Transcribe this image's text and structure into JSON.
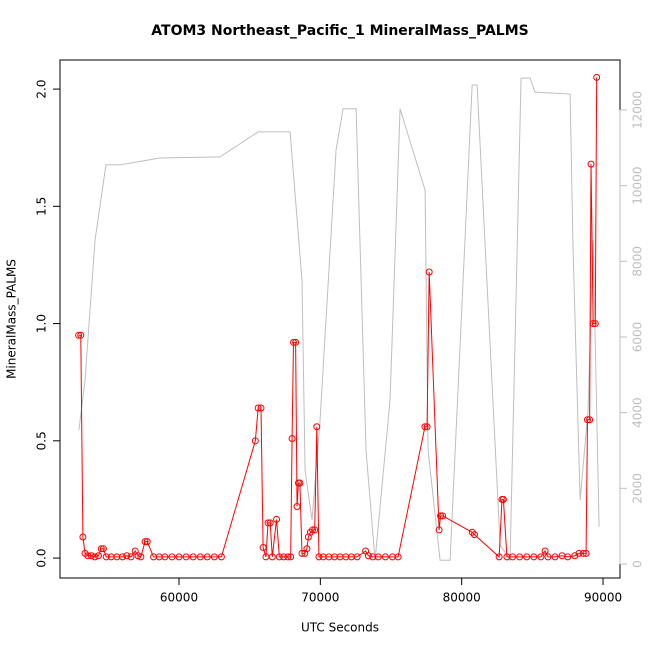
{
  "chart_data": {
    "type": "line",
    "title": "ATOM3 Northeast_Pacific_1 MineralMass_PALMS",
    "xlabel": "UTC Seconds",
    "ylabel": "MineralMass_PALMS",
    "xlim": [
      51580,
      91200
    ],
    "ylim": [
      -0.085,
      2.124
    ],
    "y2lim": [
      -370,
      13320
    ],
    "xticks": [
      60000,
      70000,
      80000,
      90000
    ],
    "yticks": [
      {
        "value": 0,
        "label": "0.0"
      },
      0.5,
      {
        "value": 1,
        "label": "1.0"
      },
      1.5,
      {
        "value": 2,
        "label": "2.0"
      }
    ],
    "y2ticks": [
      0,
      2000,
      4000,
      6000,
      8000,
      10000,
      12000
    ],
    "series": [
      {
        "color": "#bebebe",
        "axis": "y2",
        "markers": false,
        "x": [
          52920,
          53350,
          54060,
          54830,
          55830,
          58660,
          62900,
          65600,
          67860,
          68700,
          68920,
          69410,
          69980,
          71110,
          71610,
          72530,
          73230,
          73870,
          74930,
          75640,
          77410,
          77620,
          78470,
          79180,
          80740,
          81090,
          82720,
          83420,
          84200,
          84840,
          85190,
          87670,
          87880,
          88380,
          88940,
          89300,
          89720
        ],
        "values": [
          3540,
          4860,
          8560,
          10550,
          10550,
          10730,
          10760,
          11420,
          11420,
          7500,
          2480,
          1160,
          3800,
          10940,
          12030,
          12030,
          3010,
          100,
          4330,
          12030,
          9880,
          3010,
          100,
          100,
          12660,
          12660,
          500,
          100,
          12840,
          12840,
          12470,
          12420,
          8300,
          1690,
          4070,
          8560,
          980
        ]
      },
      {
        "color": "#ff0000",
        "axis": "y",
        "markers": true,
        "x": [
          52900,
          53050,
          53200,
          53350,
          53550,
          53800,
          54050,
          54300,
          54500,
          54650,
          54850,
          55200,
          55600,
          56000,
          56300,
          56600,
          56900,
          57100,
          57300,
          57600,
          57750,
          58200,
          58600,
          59000,
          59500,
          60000,
          60500,
          61000,
          61500,
          62000,
          62500,
          63000,
          65400,
          65600,
          65800,
          65950,
          66150,
          66300,
          66450,
          66600,
          66900,
          67100,
          67400,
          67700,
          67900,
          68000,
          68100,
          68250,
          68350,
          68450,
          68550,
          68700,
          68900,
          69050,
          69150,
          69300,
          69450,
          69600,
          69750,
          69900,
          70200,
          70600,
          71000,
          71400,
          71800,
          72200,
          72600,
          73200,
          73400,
          73700,
          74100,
          74600,
          75100,
          75500,
          77400,
          77550,
          77700,
          78400,
          78500,
          78650,
          80750,
          80900,
          82650,
          82850,
          82950,
          83200,
          83600,
          84100,
          84600,
          85100,
          85600,
          85900,
          86100,
          86600,
          87100,
          87500,
          88000,
          88300,
          88600,
          88800,
          88900,
          89050,
          89150,
          89300,
          89450,
          89550
        ],
        "values": [
          0.95,
          0.95,
          0.09,
          0.02,
          0.01,
          0.01,
          0.005,
          0.01,
          0.04,
          0.04,
          0.005,
          0.005,
          0.005,
          0.005,
          0.01,
          0.005,
          0.03,
          0.01,
          0.005,
          0.07,
          0.07,
          0.005,
          0.005,
          0.005,
          0.005,
          0.005,
          0.005,
          0.005,
          0.005,
          0.005,
          0.005,
          0.005,
          0.5,
          0.64,
          0.64,
          0.045,
          0.005,
          0.15,
          0.15,
          0.005,
          0.165,
          0.005,
          0.005,
          0.005,
          0.005,
          0.51,
          0.92,
          0.92,
          0.22,
          0.32,
          0.32,
          0.02,
          0.02,
          0.04,
          0.09,
          0.11,
          0.12,
          0.12,
          0.56,
          0.005,
          0.005,
          0.005,
          0.005,
          0.005,
          0.005,
          0.005,
          0.005,
          0.03,
          0.01,
          0.005,
          0.005,
          0.005,
          0.005,
          0.005,
          0.56,
          0.56,
          1.22,
          0.12,
          0.18,
          0.18,
          0.11,
          0.1,
          0.005,
          0.25,
          0.25,
          0.005,
          0.005,
          0.005,
          0.005,
          0.005,
          0.005,
          0.03,
          0.005,
          0.005,
          0.01,
          0.005,
          0.01,
          0.02,
          0.02,
          0.02,
          0.59,
          0.59,
          1.68,
          1.0,
          1.0,
          2.05
        ]
      }
    ]
  }
}
